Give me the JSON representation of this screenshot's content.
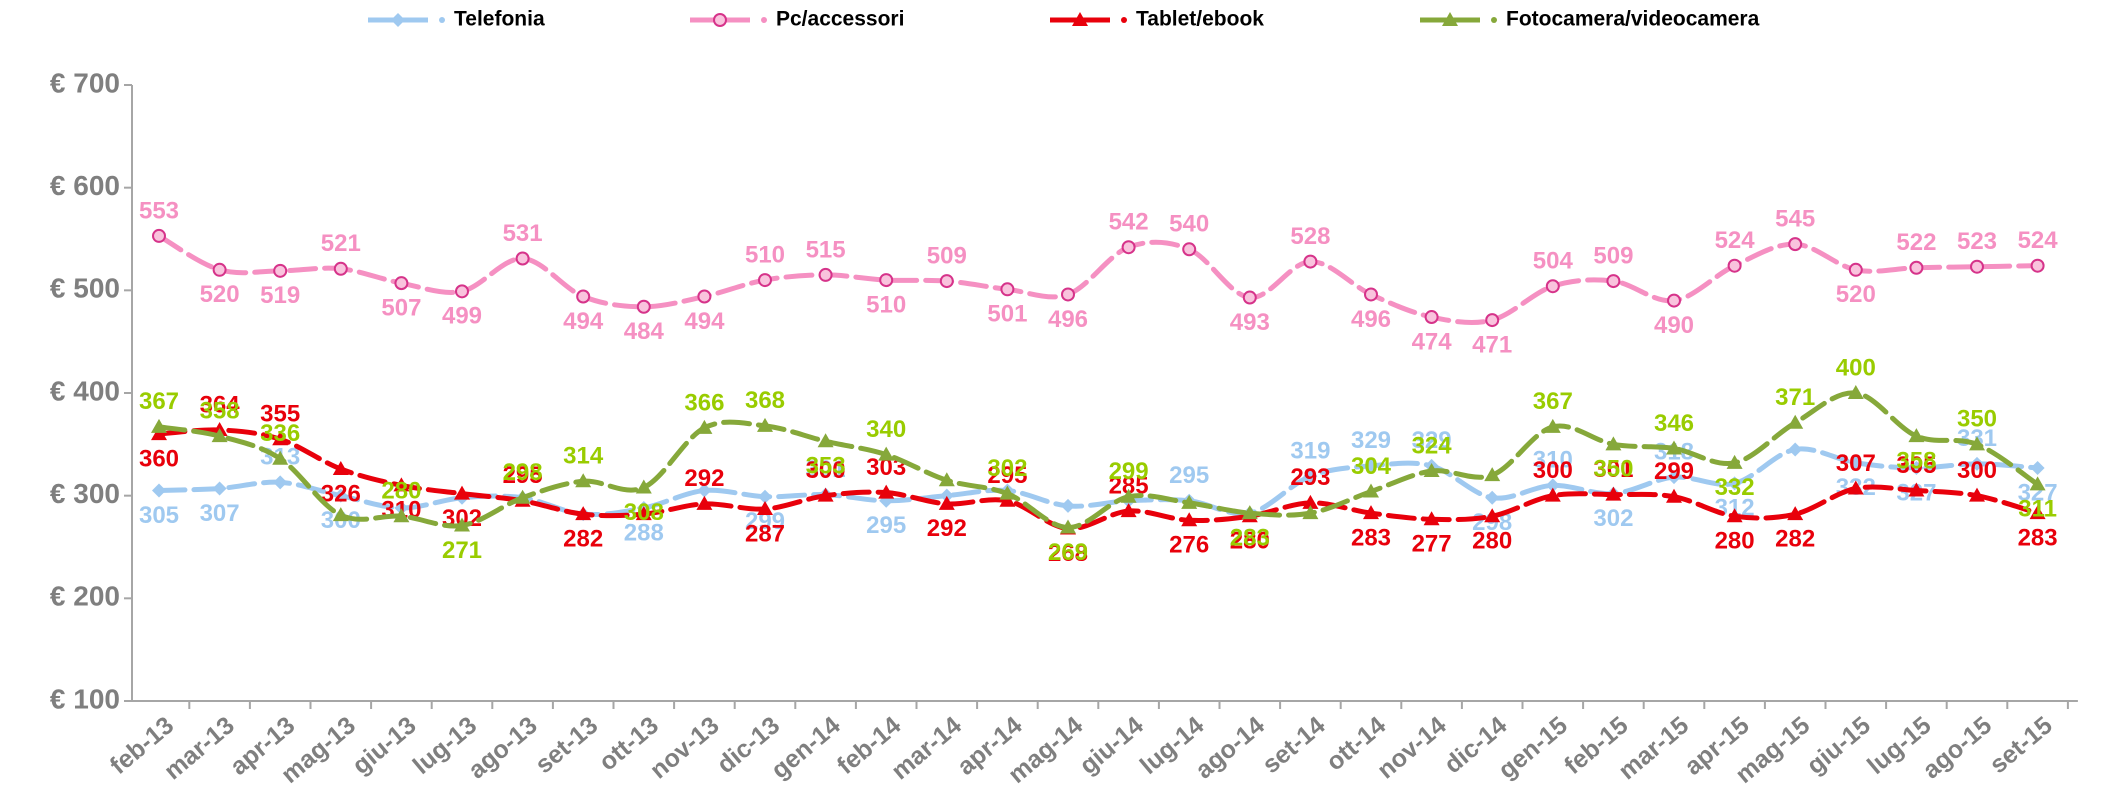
{
  "chart_data": {
    "type": "line",
    "categories": [
      "feb-13",
      "mar-13",
      "apr-13",
      "mag-13",
      "giu-13",
      "lug-13",
      "ago-13",
      "set-13",
      "ott-13",
      "nov-13",
      "dic-13",
      "gen-14",
      "feb-14",
      "mar-14",
      "apr-14",
      "mag-14",
      "giu-14",
      "lug-14",
      "ago-14",
      "set-14",
      "ott-14",
      "nov-14",
      "dic-14",
      "gen-15",
      "feb-15",
      "mar-15",
      "apr-15",
      "mag-15",
      "giu-15",
      "lug-15",
      "ago-15",
      "set-15"
    ],
    "ylim": [
      100,
      700
    ],
    "yticks": [
      {
        "value": 100,
        "label": "€ 100"
      },
      {
        "value": 200,
        "label": "€ 200"
      },
      {
        "value": 300,
        "label": "€ 300"
      },
      {
        "value": 400,
        "label": "€ 400"
      },
      {
        "value": 500,
        "label": "€ 500"
      },
      {
        "value": 600,
        "label": "€ 600"
      },
      {
        "value": 700,
        "label": "€ 700"
      }
    ],
    "series": [
      {
        "name": "Telefonia",
        "color": "#9fc9f0",
        "label_color": "#9fc9f0",
        "marker": "diamond",
        "values": [
          305,
          307,
          313,
          300,
          288,
          298,
          298,
          282,
          288,
          305,
          299,
          301,
          295,
          300,
          305,
          290,
          295,
          295,
          283,
          319,
          329,
          329,
          298,
          310,
          302,
          318,
          312,
          345,
          332,
          327,
          331,
          327
        ],
        "value_labels": [
          "305",
          "307",
          "313",
          "300",
          null,
          null,
          null,
          null,
          "288",
          null,
          "299",
          "301",
          "295",
          null,
          null,
          null,
          null,
          "295",
          "283",
          "319",
          "329",
          "329",
          "298",
          "310",
          "302",
          "318",
          "312",
          null,
          "332",
          "327",
          "331",
          "327"
        ]
      },
      {
        "name": "Pc/accessori",
        "color": "#f590c2",
        "label_color": "#f590c2",
        "marker": "circle",
        "values": [
          553,
          520,
          519,
          521,
          507,
          499,
          531,
          494,
          484,
          494,
          510,
          515,
          510,
          509,
          501,
          496,
          542,
          540,
          493,
          528,
          496,
          474,
          471,
          504,
          509,
          490,
          524,
          545,
          520,
          522,
          523,
          524
        ],
        "value_labels": [
          "553",
          "520",
          "519",
          "521",
          "507",
          "499",
          "531",
          "494",
          "484",
          "494",
          "510",
          "515",
          "510",
          "509",
          "501",
          "496",
          "542",
          "540",
          "493",
          "528",
          "496",
          "474",
          "471",
          "504",
          "509",
          "490",
          "524",
          "545",
          "520",
          "522",
          "523",
          "524"
        ]
      },
      {
        "name": "Tablet/ebook",
        "color": "#e8000b",
        "label_color": "#e8000b",
        "marker": "triangle",
        "values": [
          360,
          364,
          355,
          326,
          310,
          302,
          295,
          282,
          282,
          292,
          287,
          300,
          303,
          292,
          295,
          268,
          285,
          276,
          280,
          293,
          283,
          277,
          280,
          300,
          301,
          299,
          280,
          282,
          307,
          305,
          300,
          283
        ],
        "value_labels": [
          "360",
          "364",
          "355",
          "326",
          "310",
          "302",
          "295",
          "282",
          null,
          "292",
          "287",
          "300",
          "303",
          "292",
          "295",
          "268",
          "285",
          "276",
          "280",
          "293",
          "283",
          "277",
          "280",
          "300",
          "301",
          "299",
          "280",
          "282",
          "307",
          "305",
          "300",
          "283"
        ]
      },
      {
        "name": "Fotocamera/videocamera",
        "color": "#86a83a",
        "label_color": "#99cc00",
        "marker": "triangle",
        "values": [
          367,
          358,
          336,
          281,
          280,
          271,
          298,
          314,
          308,
          366,
          368,
          353,
          340,
          315,
          302,
          269,
          299,
          293,
          283,
          283,
          304,
          324,
          320,
          367,
          350,
          346,
          332,
          371,
          400,
          358,
          350,
          311
        ],
        "value_labels": [
          "367",
          "358",
          "336",
          null,
          "280",
          "271",
          "298",
          "314",
          "308",
          "366",
          "368",
          "353",
          "340",
          null,
          "302",
          "269",
          "299",
          null,
          "283",
          null,
          "304",
          "324",
          null,
          "367",
          "350",
          "346",
          "332",
          "371",
          "400",
          "358",
          "350",
          "311"
        ]
      }
    ]
  }
}
